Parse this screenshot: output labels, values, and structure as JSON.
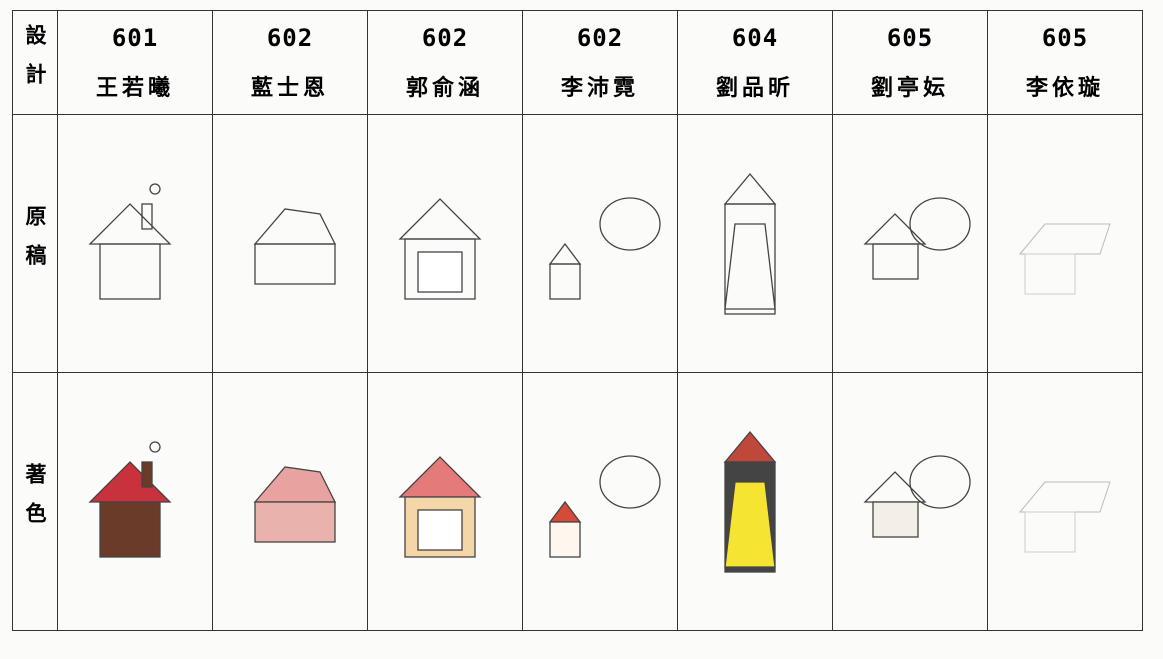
{
  "table": {
    "corner": "設計",
    "columns": [
      {
        "class": "601",
        "name": "王若曦"
      },
      {
        "class": "602",
        "name": "藍士恩"
      },
      {
        "class": "602",
        "name": "郭俞涵"
      },
      {
        "class": "602",
        "name": "李沛霓"
      },
      {
        "class": "604",
        "name": "劉品昕"
      },
      {
        "class": "605",
        "name": "劉亭妘"
      },
      {
        "class": "605",
        "name": "李依璇"
      }
    ],
    "rows": [
      "原稿",
      "著色"
    ]
  }
}
